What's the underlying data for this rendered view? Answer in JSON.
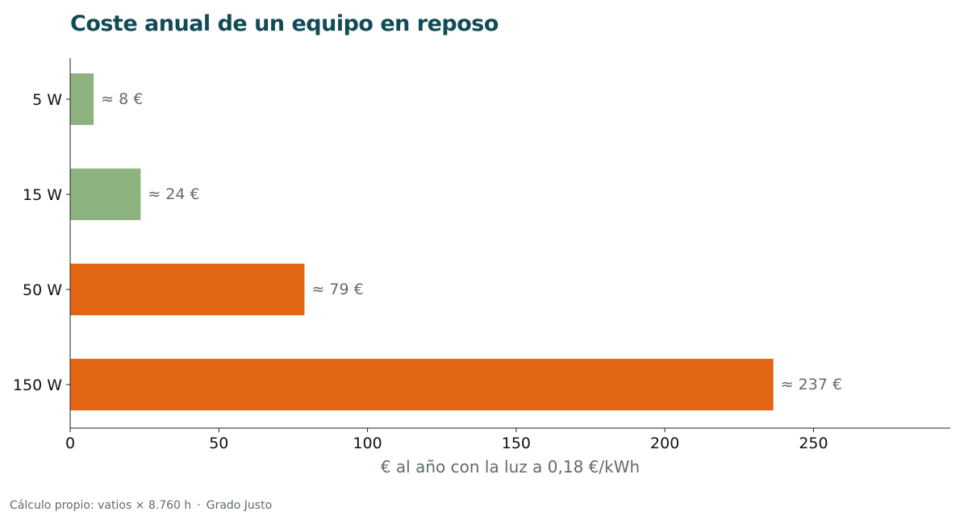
{
  "chart_data": {
    "type": "bar",
    "orientation": "horizontal",
    "title": "Coste anual de un equipo en reposo",
    "xlabel": "€ al año con la luz a 0,18 €/kWh",
    "ylabel": "",
    "categories": [
      "5 W",
      "15 W",
      "50 W",
      "150 W"
    ],
    "values": [
      7.9,
      23.7,
      78.8,
      236.5
    ],
    "value_labels": [
      "≈ 8 €",
      "≈ 24 €",
      "≈ 79 €",
      "≈ 237 €"
    ],
    "bar_colors": [
      "#8db37e",
      "#8db37e",
      "#e26513",
      "#e26513"
    ],
    "xlim": [
      0,
      296
    ],
    "xticks": [
      0,
      50,
      100,
      150,
      200,
      250
    ],
    "grid": false,
    "legend": "none"
  },
  "footer": {
    "source": "Cálculo propio: vatios × 8.760 h",
    "separator": "·",
    "brand": "Grado Justo"
  },
  "colors": {
    "title": "#124a55",
    "axis_label": "#5f6b70",
    "value_label": "#5f6b70",
    "axis_line": "#222222"
  }
}
